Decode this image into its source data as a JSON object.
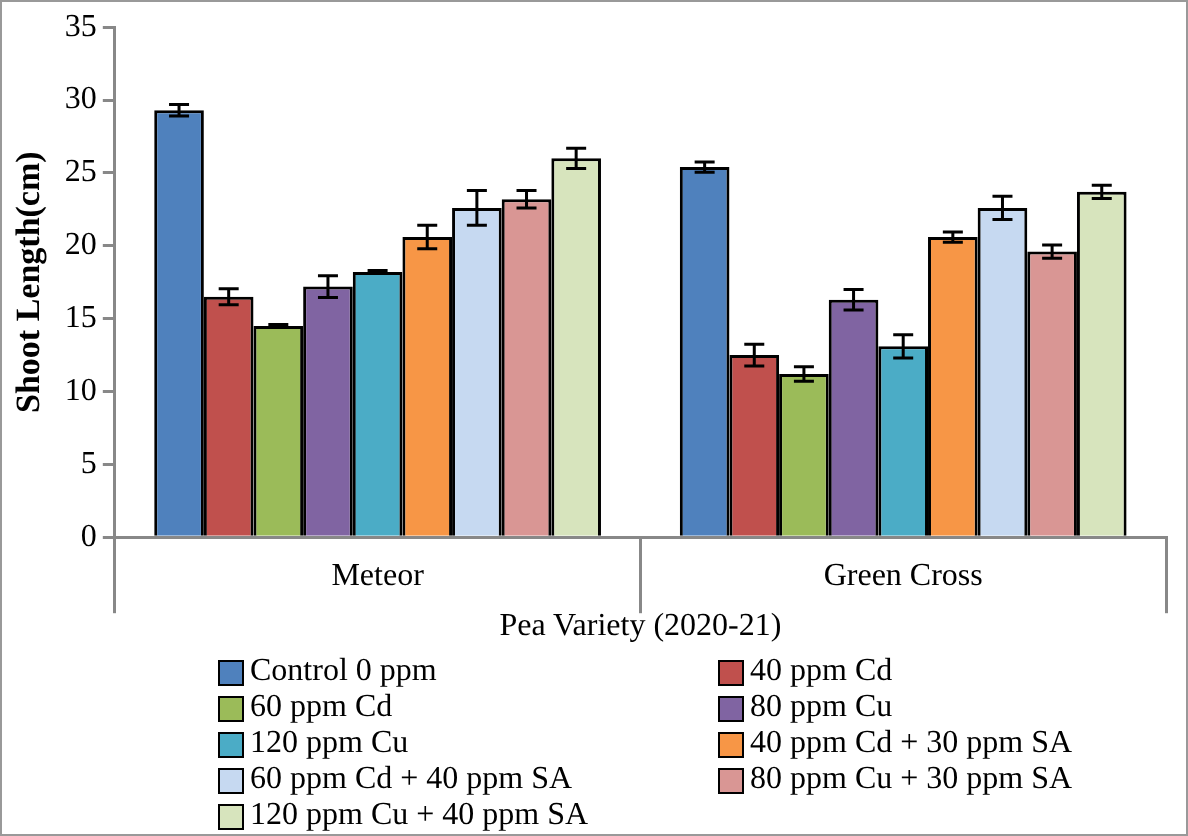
{
  "chart_data": {
    "type": "bar",
    "xlabel": "Pea Variety (2020-21)",
    "ylabel": "Shoot Length(cm)",
    "categories": [
      "Meteor",
      "Green Cross"
    ],
    "series": [
      {
        "name": "Control 0 ppm",
        "color": "#4f81bd",
        "values": [
          29.3,
          25.4
        ],
        "errors": [
          0.4,
          0.35
        ]
      },
      {
        "name": "40 ppm Cd",
        "color": "#c0504d",
        "values": [
          16.5,
          12.5
        ],
        "errors": [
          0.55,
          0.75
        ]
      },
      {
        "name": "60 ppm Cd",
        "color": "#9bbb59",
        "values": [
          14.5,
          11.2
        ],
        "errors": [
          0.1,
          0.5
        ]
      },
      {
        "name": "80 ppm Cu",
        "color": "#8064a2",
        "values": [
          17.2,
          16.3
        ],
        "errors": [
          0.75,
          0.7
        ]
      },
      {
        "name": "120 ppm Cu",
        "color": "#4bacc6",
        "values": [
          18.2,
          13.1
        ],
        "errors": [
          0.1,
          0.8
        ]
      },
      {
        "name": "40 ppm Cd + 30 ppm SA",
        "color": "#f79646",
        "values": [
          20.6,
          20.6
        ],
        "errors": [
          0.8,
          0.35
        ]
      },
      {
        "name": "60 ppm Cd + 40 ppm SA",
        "color": "#c6d9f1",
        "values": [
          22.6,
          22.6
        ],
        "errors": [
          1.2,
          0.8
        ]
      },
      {
        "name": "80 ppm Cu + 30 ppm SA",
        "color": "#d99694",
        "values": [
          23.2,
          19.6
        ],
        "errors": [
          0.6,
          0.45
        ]
      },
      {
        "name": "120 ppm Cu + 40 ppm SA",
        "color": "#d7e4bd",
        "values": [
          26.0,
          23.7
        ],
        "errors": [
          0.7,
          0.45
        ]
      }
    ],
    "ylim": [
      0,
      35
    ],
    "yticks": [
      0,
      5,
      10,
      15,
      20,
      25,
      30,
      35
    ],
    "grid": false,
    "legend": "bottom"
  }
}
